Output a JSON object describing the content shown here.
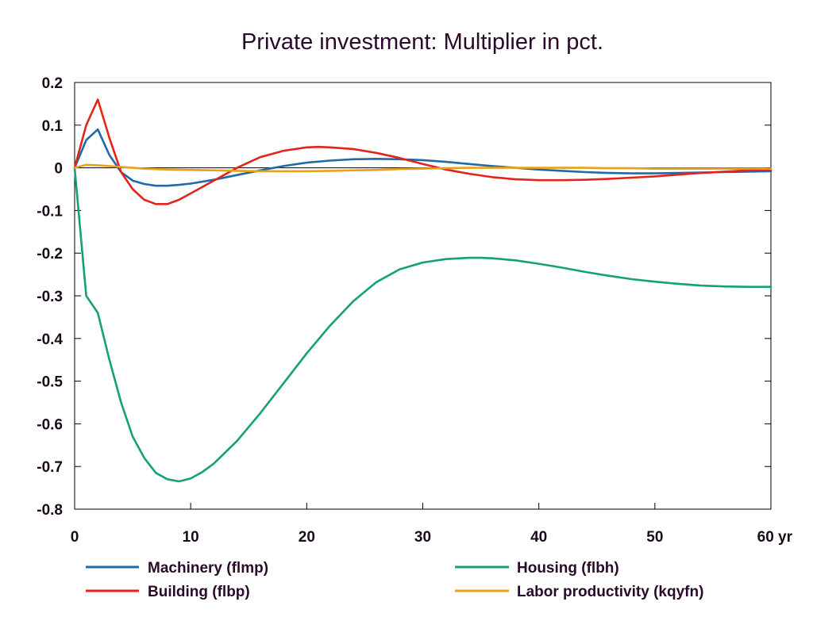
{
  "chart_data": {
    "type": "line",
    "title": "Private investment: Multiplier in pct.",
    "xlabel": "",
    "ylabel": "",
    "xlim": [
      0,
      60
    ],
    "ylim": [
      -0.8,
      0.2
    ],
    "x_ticks": [
      0,
      10,
      20,
      30,
      40,
      50,
      60
    ],
    "x_tick_labels": [
      "0",
      "10",
      "20",
      "30",
      "40",
      "50",
      "60 yr"
    ],
    "y_ticks": [
      0.2,
      0.1,
      0,
      -0.1,
      -0.2,
      -0.3,
      -0.4,
      -0.5,
      -0.6,
      -0.7,
      -0.8
    ],
    "y_tick_labels": [
      "0.2",
      "0.1",
      "0",
      "-0.1",
      "-0.2",
      "-0.3",
      "-0.4",
      "-0.5",
      "-0.6",
      "-0.7",
      "-0.8"
    ],
    "grid": false,
    "zero_line": true,
    "legend_position": "bottom",
    "series": [
      {
        "name": "Machinery (flmp)",
        "color": "#1f6aa8",
        "x": [
          0,
          1,
          2,
          3,
          4,
          5,
          6,
          7,
          8,
          9,
          10,
          12,
          14,
          16,
          18,
          20,
          22,
          24,
          26,
          28,
          30,
          32,
          34,
          36,
          38,
          40,
          42,
          44,
          46,
          48,
          50,
          52,
          54,
          56,
          58,
          60
        ],
        "y": [
          0,
          0.065,
          0.09,
          0.03,
          -0.01,
          -0.03,
          -0.038,
          -0.042,
          -0.042,
          -0.04,
          -0.037,
          -0.028,
          -0.017,
          -0.006,
          0.004,
          0.012,
          0.017,
          0.02,
          0.021,
          0.02,
          0.018,
          0.014,
          0.009,
          0.004,
          0,
          -0.004,
          -0.007,
          -0.01,
          -0.012,
          -0.013,
          -0.013,
          -0.012,
          -0.011,
          -0.01,
          -0.009,
          -0.008
        ]
      },
      {
        "name": "Building (flbp)",
        "color": "#e4241b",
        "x": [
          0,
          1,
          2,
          3,
          4,
          5,
          6,
          7,
          8,
          9,
          10,
          12,
          14,
          16,
          18,
          20,
          21,
          22,
          24,
          26,
          28,
          30,
          32,
          34,
          36,
          38,
          40,
          42,
          44,
          46,
          48,
          50,
          52,
          54,
          56,
          58,
          60
        ],
        "y": [
          0,
          0.1,
          0.16,
          0.07,
          -0.01,
          -0.05,
          -0.075,
          -0.085,
          -0.085,
          -0.075,
          -0.06,
          -0.03,
          0,
          0.025,
          0.04,
          0.048,
          0.049,
          0.048,
          0.044,
          0.035,
          0.023,
          0.009,
          -0.004,
          -0.014,
          -0.022,
          -0.027,
          -0.029,
          -0.029,
          -0.028,
          -0.026,
          -0.023,
          -0.02,
          -0.016,
          -0.012,
          -0.009,
          -0.006,
          -0.004
        ]
      },
      {
        "name": "Housing (flbh)",
        "color": "#15a07a",
        "x": [
          0,
          1,
          2,
          3,
          4,
          5,
          6,
          7,
          8,
          9,
          10,
          11,
          12,
          14,
          16,
          18,
          20,
          22,
          24,
          26,
          28,
          30,
          32,
          34,
          35,
          36,
          38,
          40,
          42,
          44,
          46,
          48,
          50,
          52,
          54,
          56,
          58,
          60
        ],
        "y": [
          0,
          -0.3,
          -0.34,
          -0.45,
          -0.55,
          -0.63,
          -0.68,
          -0.715,
          -0.73,
          -0.735,
          -0.728,
          -0.713,
          -0.693,
          -0.64,
          -0.575,
          -0.505,
          -0.435,
          -0.37,
          -0.313,
          -0.268,
          -0.238,
          -0.222,
          -0.214,
          -0.211,
          -0.211,
          -0.212,
          -0.217,
          -0.225,
          -0.234,
          -0.244,
          -0.253,
          -0.261,
          -0.267,
          -0.272,
          -0.276,
          -0.278,
          -0.279,
          -0.279
        ]
      },
      {
        "name": "Labor productivity (kqyfn)",
        "color": "#e8a21a",
        "x": [
          0,
          1,
          2,
          3,
          4,
          5,
          6,
          8,
          10,
          12,
          14,
          16,
          18,
          20,
          22,
          24,
          26,
          28,
          30,
          32,
          34,
          36,
          38,
          40,
          42,
          44,
          46,
          48,
          50,
          52,
          54,
          56,
          58,
          60
        ],
        "y": [
          0,
          0.007,
          0.006,
          0.004,
          0.002,
          0.0,
          -0.002,
          -0.004,
          -0.005,
          -0.006,
          -0.007,
          -0.008,
          -0.008,
          -0.008,
          -0.007,
          -0.006,
          -0.005,
          -0.003,
          -0.002,
          -0.001,
          0.0,
          0.0,
          0.0,
          0.0,
          0.0,
          0.0,
          -0.001,
          -0.001,
          -0.002,
          -0.002,
          -0.002,
          -0.002,
          -0.002,
          -0.002
        ]
      }
    ]
  }
}
